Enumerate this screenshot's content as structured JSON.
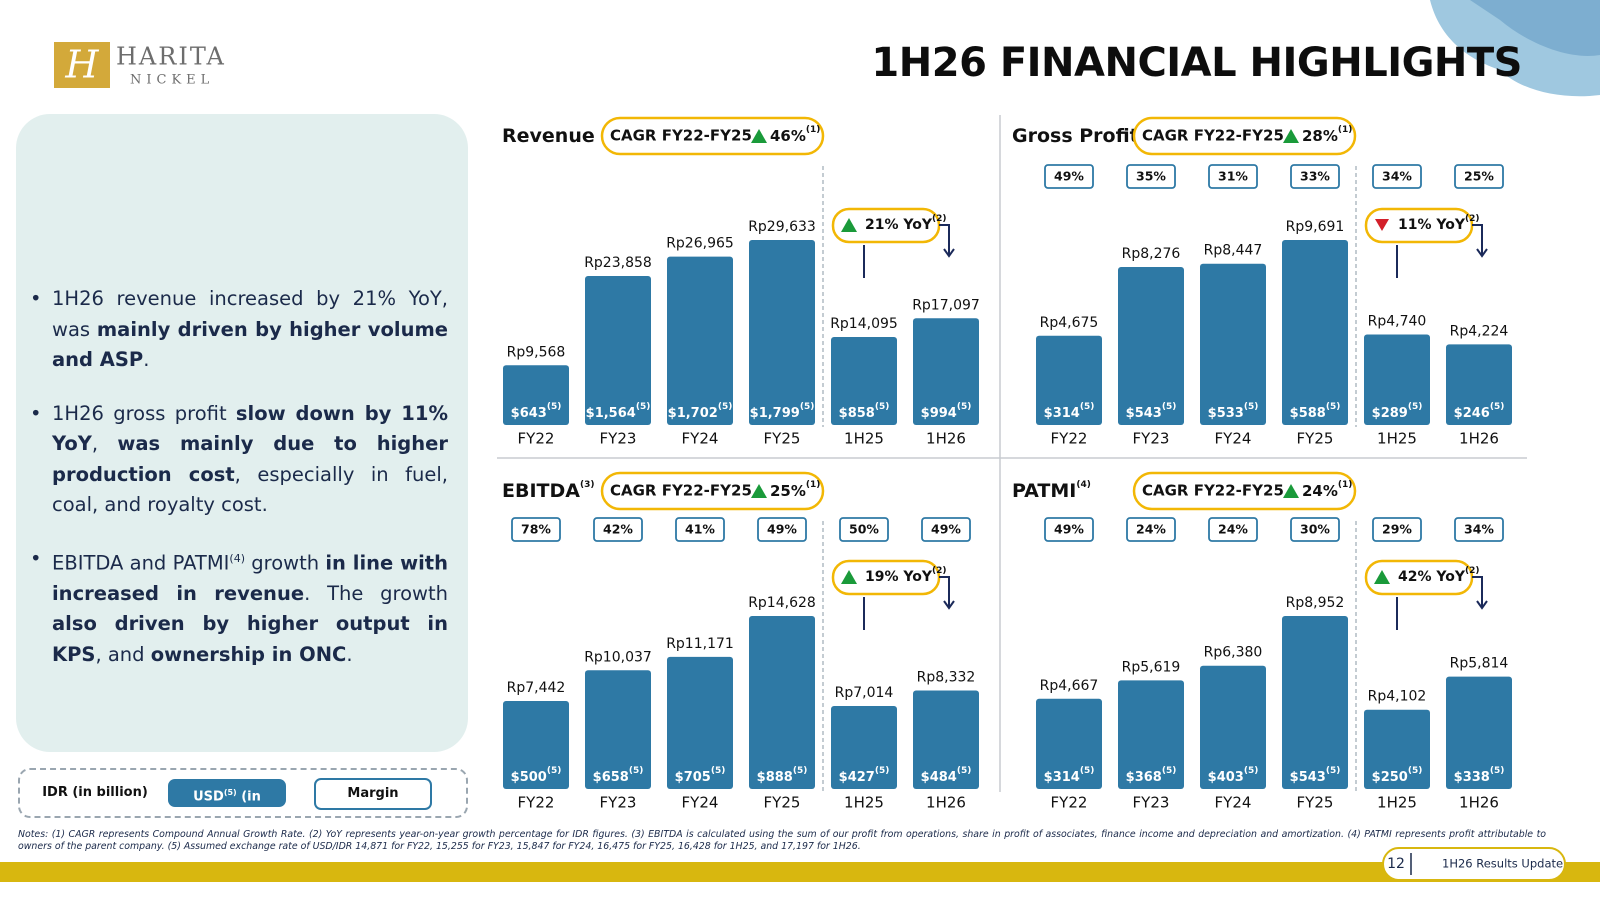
{
  "header": {
    "logo_name": "HARITA",
    "logo_sub": "NICKEL",
    "logo_letter": "H",
    "title": "1H26 FINANCIAL HIGHLIGHTS"
  },
  "bullets": [
    [
      {
        "t": "1H26 revenue increased by 21% YoY, was "
      },
      {
        "t": "mainly driven by higher volume and ASP",
        "b": true
      },
      {
        "t": "."
      }
    ],
    [
      {
        "t": "1H26 gross profit "
      },
      {
        "t": "slow down by 11% YoY",
        "b": true
      },
      {
        "t": ", "
      },
      {
        "t": "was mainly due to higher production cost",
        "b": true
      },
      {
        "t": ", especially in fuel, coal, and royalty cost."
      }
    ],
    [
      {
        "t": "EBITDA and PATMI"
      },
      {
        "t": "(4)",
        "sup": true
      },
      {
        "t": " growth "
      },
      {
        "t": "in line with increased in revenue",
        "b": true
      },
      {
        "t": ". The growth "
      },
      {
        "t": "also driven by higher output in KPS",
        "b": true
      },
      {
        "t": ", and "
      },
      {
        "t": "ownership in ONC",
        "b": true
      },
      {
        "t": "."
      }
    ]
  ],
  "legend": {
    "idr": "IDR (in billion)",
    "usd": "USD",
    "usd_sup": "(5)",
    "usd_unit": " (in million)",
    "margin": "Margin"
  },
  "notes": "Notes: (1) CAGR represents Compound Annual Growth Rate. (2) YoY represents year-on-year growth percentage for IDR figures. (3) EBITDA is calculated using the sum of our profit from operations, share in profit of associates, finance income and depreciation and amortization. (4) PATMI represents profit attributable to owners of the parent company. (5) Assumed exchange rate of USD/IDR 14,871 for FY22, 15,255 for FY23, 15,847 for FY24, 16,475 for FY25, 16,428 for 1H25, and 17,197 for 1H26.",
  "footer": {
    "page": "12",
    "label": "1H26 Results Update"
  },
  "chart_data": [
    {
      "type": "bar",
      "title": "Revenue",
      "cagr_label": "CAGR FY22-FY25",
      "cagr_value": "46%",
      "cagr_sup": "(1)",
      "yoy": "21% YoY",
      "yoy_sup": "(2)",
      "yoy_direction": "up",
      "color": "#2e79a5",
      "categories": [
        "FY22",
        "FY23",
        "FY24",
        "FY25",
        "1H25",
        "1H26"
      ],
      "values": [
        9568,
        23858,
        26965,
        29633,
        14095,
        17097
      ],
      "value_labels": [
        "Rp9,568",
        "Rp23,858",
        "Rp26,965",
        "Rp29,633",
        "Rp14,095",
        "Rp17,097"
      ],
      "usd_labels": [
        "$643",
        "$1,564",
        "$1,702",
        "$1,799",
        "$858",
        "$994"
      ],
      "usd_sup": "(5)"
    },
    {
      "type": "bar",
      "title": "Gross Profit",
      "cagr_label": "CAGR FY22-FY25",
      "cagr_value": "28%",
      "cagr_sup": "(1)",
      "yoy": "11% YoY",
      "yoy_sup": "(2)",
      "yoy_direction": "down",
      "color": "#2e79a5",
      "categories": [
        "FY22",
        "FY23",
        "FY24",
        "FY25",
        "1H25",
        "1H26"
      ],
      "values": [
        4675,
        8276,
        8447,
        9691,
        4740,
        4224
      ],
      "value_labels": [
        "Rp4,675",
        "Rp8,276",
        "Rp8,447",
        "Rp9,691",
        "Rp4,740",
        "Rp4,224"
      ],
      "usd_labels": [
        "$314",
        "$543",
        "$533",
        "$588",
        "$289",
        "$246"
      ],
      "usd_sup": "(5)",
      "margin_labels": [
        "49%",
        "35%",
        "31%",
        "33%",
        "34%",
        "25%"
      ]
    },
    {
      "type": "bar",
      "title": "EBITDA",
      "title_sup": "(3)",
      "cagr_label": "CAGR FY22-FY25",
      "cagr_value": "25%",
      "cagr_sup": "(1)",
      "yoy": "19% YoY",
      "yoy_sup": "(2)",
      "yoy_direction": "up",
      "color": "#2e79a5",
      "categories": [
        "FY22",
        "FY23",
        "FY24",
        "FY25",
        "1H25",
        "1H26"
      ],
      "values": [
        7442,
        10037,
        11171,
        14628,
        7014,
        8332
      ],
      "value_labels": [
        "Rp7,442",
        "Rp10,037",
        "Rp11,171",
        "Rp14,628",
        "Rp7,014",
        "Rp8,332"
      ],
      "usd_labels": [
        "$500",
        "$658",
        "$705",
        "$888",
        "$427",
        "$484"
      ],
      "usd_sup": "(5)",
      "margin_labels": [
        "78%",
        "42%",
        "41%",
        "49%",
        "50%",
        "49%"
      ]
    },
    {
      "type": "bar",
      "title": "PATMI",
      "title_sup": "(4)",
      "cagr_label": "CAGR FY22-FY25",
      "cagr_value": "24%",
      "cagr_sup": "(1)",
      "yoy": "42% YoY",
      "yoy_sup": "(2)",
      "yoy_direction": "up",
      "color": "#2e79a5",
      "categories": [
        "FY22",
        "FY23",
        "FY24",
        "FY25",
        "1H25",
        "1H26"
      ],
      "values": [
        4667,
        5619,
        6380,
        8952,
        4102,
        5814
      ],
      "value_labels": [
        "Rp4,667",
        "Rp5,619",
        "Rp6,380",
        "Rp8,952",
        "Rp4,102",
        "Rp5,814"
      ],
      "usd_labels": [
        "$314",
        "$368",
        "$403",
        "$543",
        "$250",
        "$338"
      ],
      "usd_sup": "(5)",
      "margin_labels": [
        "49%",
        "24%",
        "24%",
        "30%",
        "29%",
        "34%"
      ]
    }
  ]
}
